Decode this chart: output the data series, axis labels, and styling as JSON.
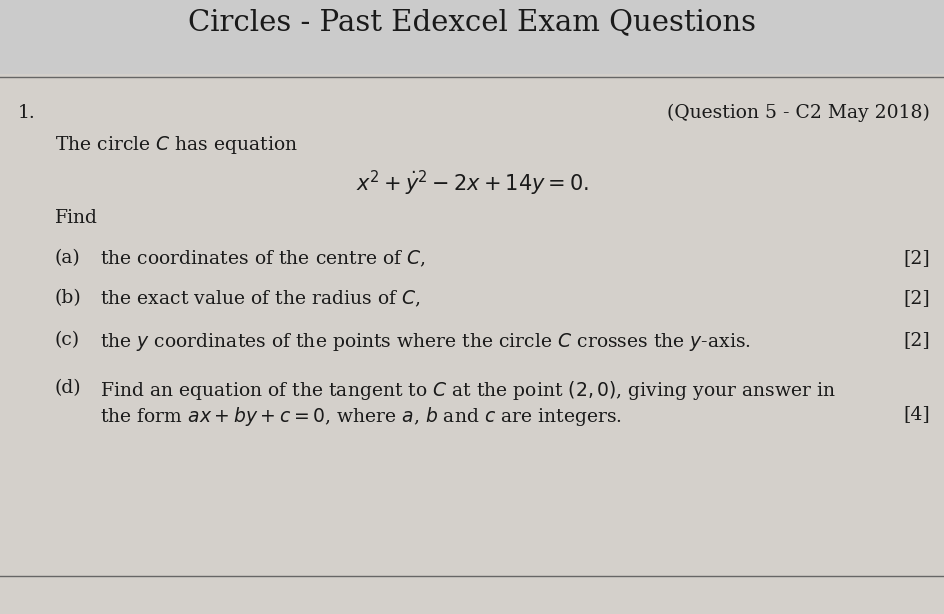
{
  "title": "Circles - Past Edexcel Exam Questions",
  "bg_top": "#c8c8c8",
  "bg_content": "#d4d0cb",
  "question_number": "1.",
  "source_label": "(Question 5 - C2 May 2018)",
  "intro_text": "The circle $C$ has equation",
  "find_text": "Find",
  "parts": [
    {
      "label": "(a)",
      "text": "the coordinates of the centre of $C$,",
      "marks": "[2]",
      "two_line": false
    },
    {
      "label": "(b)",
      "text": "the exact value of the radius of $C$,",
      "marks": "[2]",
      "two_line": false
    },
    {
      "label": "(c)",
      "text": "the $y$ coordinates of the points where the circle $C$ crosses the $y$-axis.",
      "marks": "[2]",
      "two_line": false
    },
    {
      "label": "(d)",
      "text_line1": "Find an equation of the tangent to $C$ at the point $(2, 0)$, giving your answer in",
      "text_line2": "the form $ax + by + c = 0$, where $a$, $b$ and $c$ are integers.",
      "marks": "[4]",
      "two_line": true
    }
  ],
  "title_fontsize": 21,
  "body_fontsize": 13.5,
  "marks_fontsize": 13.5,
  "title_color": "#1a1a1a",
  "text_color": "#1a1a1a",
  "line_color": "#666666"
}
